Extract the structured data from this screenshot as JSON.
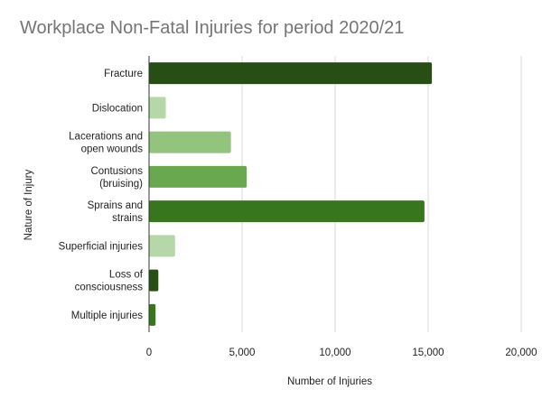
{
  "chart_data": {
    "type": "bar",
    "orientation": "horizontal",
    "title": "Workplace Non-Fatal Injuries for period 2020/21",
    "xlabel": "Number of Injuries",
    "ylabel": "Nature of Injury",
    "xlim": [
      0,
      20000
    ],
    "xticks": [
      0,
      5000,
      10000,
      15000,
      20000
    ],
    "xtick_labels": [
      "0",
      "5,000",
      "10,000",
      "15,000",
      "20,000"
    ],
    "grid": true,
    "legend": "none",
    "categories": [
      [
        "Fracture"
      ],
      [
        "Dislocation"
      ],
      [
        "Lacerations and",
        "open wounds"
      ],
      [
        "Contusions",
        "(bruising)"
      ],
      [
        "Sprains and",
        "strains"
      ],
      [
        "Superficial injuries"
      ],
      [
        "Loss of",
        "consciousness"
      ],
      [
        "Multiple injuries"
      ]
    ],
    "values": [
      15200,
      900,
      4400,
      5250,
      14800,
      1400,
      500,
      350
    ],
    "colors": [
      "#274e13",
      "#b6d7a8",
      "#93c47d",
      "#6aa84f",
      "#38761d",
      "#b6d7a8",
      "#274e13",
      "#38761d"
    ]
  }
}
